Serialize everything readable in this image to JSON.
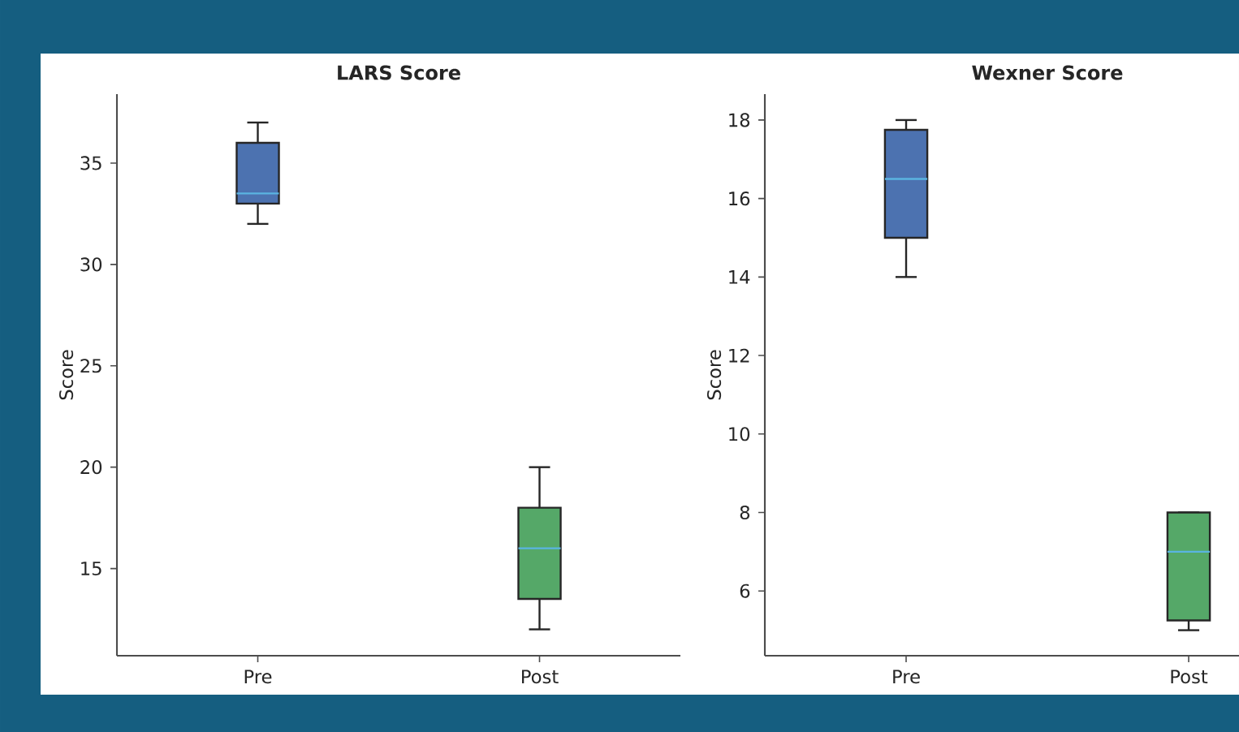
{
  "chart_data": [
    {
      "type": "box",
      "title": "LARS Score",
      "ylabel": "Score",
      "categories": [
        "Pre",
        "Post"
      ],
      "colors": [
        "#4c72b0",
        "#55a868"
      ],
      "boxes": [
        {
          "low": 32,
          "q1": 33,
          "median": 33.5,
          "q3": 36,
          "high": 37
        },
        {
          "low": 12,
          "q1": 13.5,
          "median": 16,
          "q3": 18,
          "high": 20
        }
      ],
      "ylim": [
        10.7,
        38.4
      ],
      "yticks": [
        15,
        20,
        25,
        30,
        35
      ]
    },
    {
      "type": "box",
      "title": "Wexner Score",
      "ylabel": "Score",
      "categories": [
        "Pre",
        "Post"
      ],
      "colors": [
        "#4c72b0",
        "#55a868"
      ],
      "boxes": [
        {
          "low": 14,
          "q1": 15,
          "median": 16.5,
          "q3": 17.75,
          "high": 18
        },
        {
          "low": 5,
          "q1": 5.25,
          "median": 7,
          "q3": 8,
          "high": 8
        }
      ],
      "ylim": [
        4.35,
        18.66
      ],
      "yticks": [
        6,
        8,
        10,
        12,
        14,
        16,
        18
      ]
    }
  ]
}
